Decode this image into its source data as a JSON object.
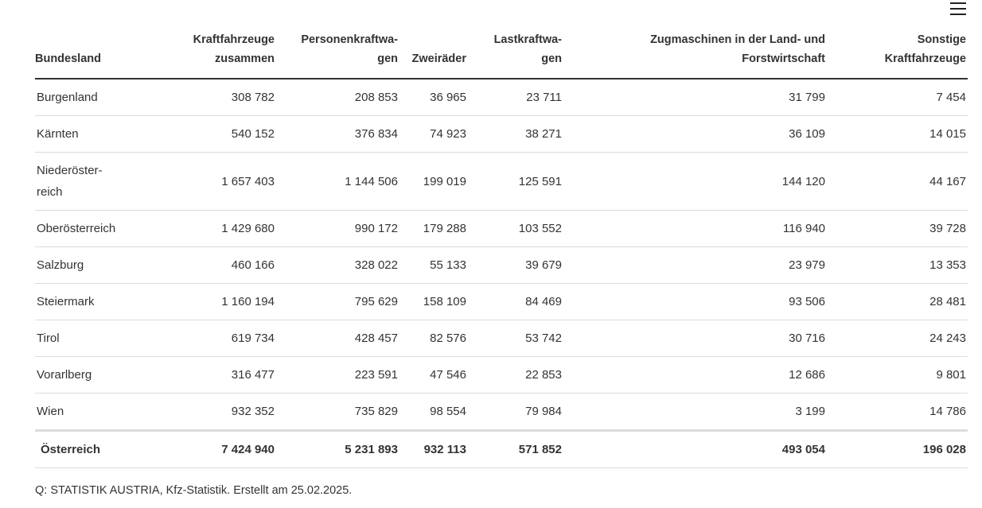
{
  "menu": {
    "icon": "hamburger-menu-icon"
  },
  "table": {
    "headers": [
      [
        "Bundesland",
        ""
      ],
      [
        "Kraftfahrzeuge",
        "zusammen"
      ],
      [
        "Personenkraftwa-",
        "gen"
      ],
      [
        "Zweiräder",
        ""
      ],
      [
        "Lastkraftwa-",
        "gen"
      ],
      [
        "Zugmaschinen in der Land- und",
        "Forstwirtschaft"
      ],
      [
        "Sonstige",
        "Kraftfahrzeuge"
      ]
    ],
    "rows": [
      {
        "name": [
          "Burgenland"
        ],
        "values": [
          "308 782",
          "208 853",
          "36 965",
          "23 711",
          "31 799",
          "7 454"
        ]
      },
      {
        "name": [
          "Kärnten"
        ],
        "values": [
          "540 152",
          "376 834",
          "74 923",
          "38 271",
          "36 109",
          "14 015"
        ]
      },
      {
        "name": [
          "Niederöster-",
          "reich"
        ],
        "values": [
          "1 657 403",
          "1 144 506",
          "199 019",
          "125 591",
          "144 120",
          "44 167"
        ]
      },
      {
        "name": [
          "Oberösterreich"
        ],
        "values": [
          "1 429 680",
          "990 172",
          "179 288",
          "103 552",
          "116 940",
          "39 728"
        ]
      },
      {
        "name": [
          "Salzburg"
        ],
        "values": [
          "460 166",
          "328 022",
          "55 133",
          "39 679",
          "23 979",
          "13 353"
        ]
      },
      {
        "name": [
          "Steiermark"
        ],
        "values": [
          "1 160 194",
          "795 629",
          "158 109",
          "84 469",
          "93 506",
          "28 481"
        ]
      },
      {
        "name": [
          "Tirol"
        ],
        "values": [
          "619 734",
          "428 457",
          "82 576",
          "53 742",
          "30 716",
          "24 243"
        ]
      },
      {
        "name": [
          "Vorarlberg"
        ],
        "values": [
          "316 477",
          "223 591",
          "47 546",
          "22 853",
          "12 686",
          "9 801"
        ]
      },
      {
        "name": [
          "Wien"
        ],
        "values": [
          "932 352",
          "735 829",
          "98 554",
          "79 984",
          "3 199",
          "14 786"
        ]
      }
    ],
    "total": {
      "name": [
        "Österreich"
      ],
      "values": [
        "7 424 940",
        "5 231 893",
        "932 113",
        "571 852",
        "493 054",
        "196 028"
      ]
    }
  },
  "source": "Q: STATISTIK AUSTRIA, Kfz-Statistik. Erstellt am 25.02.2025."
}
